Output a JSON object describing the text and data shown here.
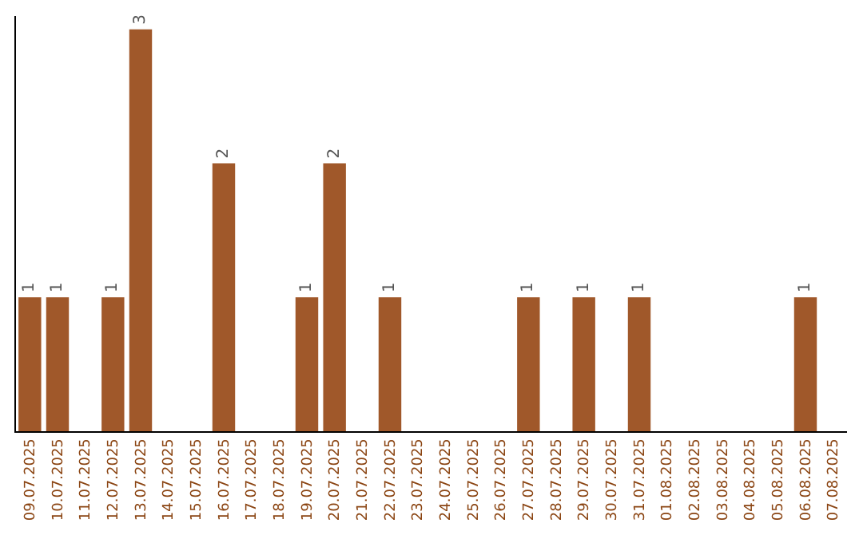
{
  "chart_data": {
    "type": "bar",
    "categories": [
      "09.07.2025",
      "10.07.2025",
      "11.07.2025",
      "12.07.2025",
      "13.07.2025",
      "14.07.2025",
      "15.07.2025",
      "16.07.2025",
      "17.07.2025",
      "18.07.2025",
      "19.07.2025",
      "20.07.2025",
      "21.07.2025",
      "22.07.2025",
      "23.07.2025",
      "24.07.2025",
      "25.07.2025",
      "26.07.2025",
      "27.07.2025",
      "28.07.2025",
      "29.07.2025",
      "30.07.2025",
      "31.07.2025",
      "01.08.2025",
      "02.08.2025",
      "03.08.2025",
      "04.08.2025",
      "05.08.2025",
      "06.08.2025",
      "07.08.2025"
    ],
    "values": [
      1,
      1,
      null,
      1,
      3,
      null,
      null,
      2,
      null,
      null,
      1,
      2,
      null,
      1,
      null,
      null,
      null,
      null,
      1,
      null,
      1,
      null,
      1,
      null,
      null,
      null,
      null,
      null,
      1,
      null
    ],
    "color": "#a0582a",
    "ylim": [
      0,
      3.1
    ],
    "data_labels": true,
    "tick_labels": "x"
  }
}
